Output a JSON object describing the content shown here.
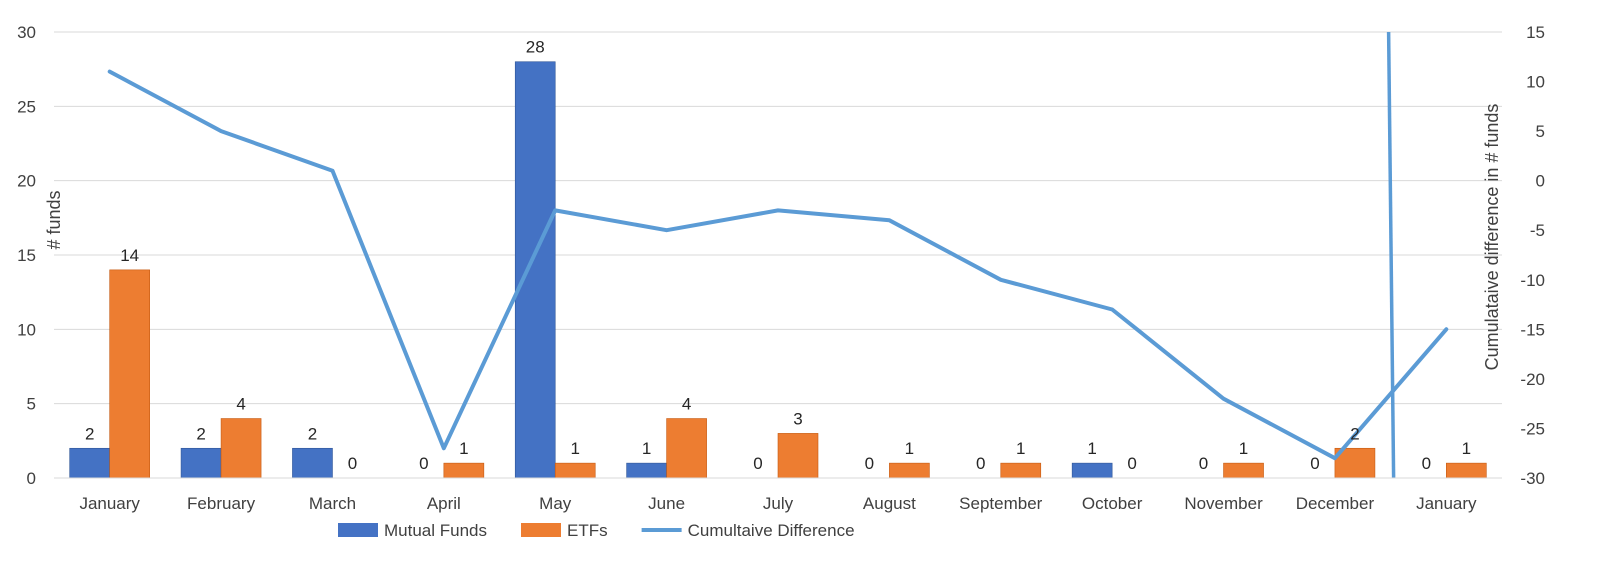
{
  "chart_data": {
    "type": "bar",
    "categories": [
      "January",
      "February",
      "March",
      "April",
      "May",
      "June",
      "July",
      "August",
      "September",
      "October",
      "November",
      "December",
      "January"
    ],
    "series": [
      {
        "name": "Mutual Funds",
        "type": "bar",
        "axis": "left",
        "color": "#4472C4",
        "values": [
          2,
          2,
          2,
          0,
          28,
          1,
          0,
          0,
          0,
          1,
          0,
          0,
          0
        ]
      },
      {
        "name": "ETFs",
        "type": "bar",
        "axis": "left",
        "color": "#ED7D31",
        "values": [
          14,
          4,
          0,
          1,
          1,
          4,
          3,
          1,
          1,
          0,
          1,
          2,
          1
        ]
      },
      {
        "name": "Cumultaive Difference",
        "type": "line",
        "axis": "right",
        "color": "#5B9BD5",
        "values": [
          11,
          5,
          1,
          -27,
          -3,
          -5,
          -3,
          -4,
          -10,
          -13,
          -22,
          -28,
          -15
        ]
      }
    ],
    "left_axis": {
      "label": "# funds",
      "ylim": [
        0,
        30
      ],
      "ticks": [
        "0",
        "5",
        "10",
        "15",
        "20",
        "25",
        "30"
      ]
    },
    "right_axis": {
      "label": "Cumulataive difference in # funds",
      "ylim": [
        -30,
        15
      ],
      "ticks": [
        "-30",
        "-25",
        "-20",
        "-15",
        "-10",
        "-5",
        "0",
        "5",
        "10",
        "15"
      ]
    },
    "annotation_line": {
      "color": "#5B9BD5",
      "between_categories": [
        11,
        12
      ]
    },
    "grid": true,
    "legend_position": "bottom"
  }
}
